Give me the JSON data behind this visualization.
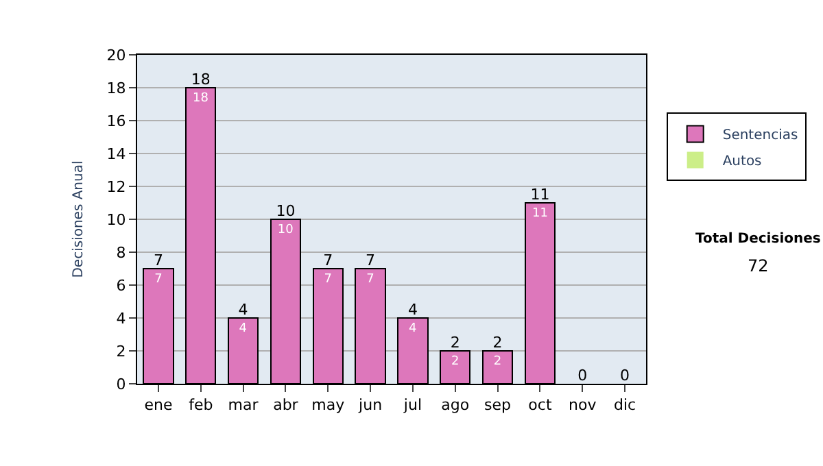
{
  "chart_data": {
    "type": "bar",
    "stacked": true,
    "ylabel": "Decisiones Anual",
    "categories": [
      "ene",
      "feb",
      "mar",
      "abr",
      "may",
      "jun",
      "jul",
      "ago",
      "sep",
      "oct",
      "nov",
      "dic"
    ],
    "series": [
      {
        "name": "Sentencias",
        "color": "#dd77bb",
        "values": [
          7,
          18,
          4,
          10,
          7,
          7,
          4,
          2,
          2,
          11,
          0,
          0
        ],
        "value_labels": [
          "7",
          "18",
          "4",
          "10",
          "7",
          "7",
          "4",
          "2",
          "2",
          "11",
          null,
          null
        ]
      },
      {
        "name": "Autos",
        "color": "#ccee88",
        "values": [
          0,
          0,
          0,
          0,
          0,
          0,
          0,
          0,
          0,
          0,
          0,
          0
        ]
      }
    ],
    "totals": [
      "7",
      "18",
      "4",
      "10",
      "7",
      "7",
      "4",
      "2",
      "2",
      "11",
      "0",
      "0"
    ],
    "ylim": [
      0,
      20
    ],
    "yticks": [
      0,
      2,
      4,
      6,
      8,
      10,
      12,
      14,
      16,
      18,
      20
    ],
    "grid": "y",
    "legend": "right",
    "annotations": [
      "Total Decisiones",
      "72"
    ]
  }
}
